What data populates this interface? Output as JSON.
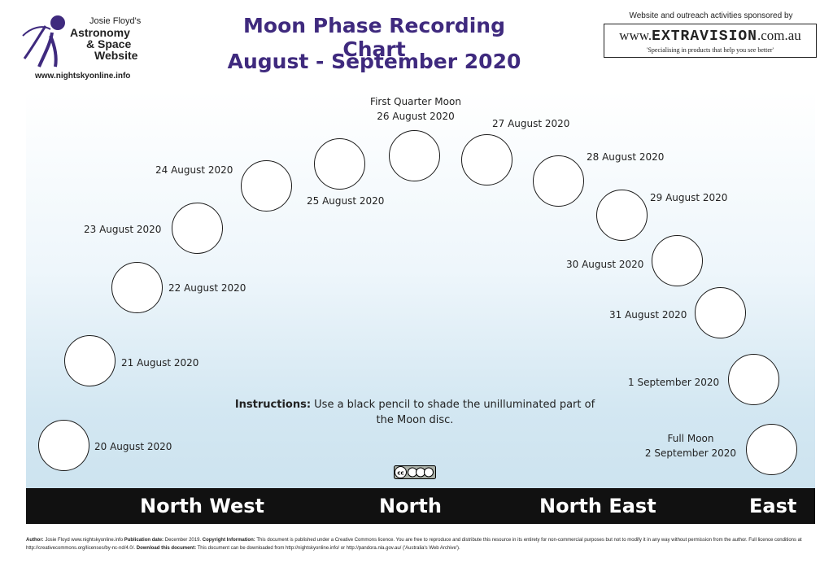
{
  "logo": {
    "line1": "Josie Floyd's",
    "line2": "Astronomy",
    "line3": "& Space",
    "line4": "Website",
    "url": "www.nightskyonline.info"
  },
  "title": {
    "line1": "Moon Phase Recording Chart",
    "line2": "August - September 2020"
  },
  "sponsor": {
    "label": "Website and outreach activities sponsored by",
    "url_prefix": "www.",
    "brand": "EXTRAVISION",
    "url_suffix": ".com.au",
    "tagline": "'Specialising in products that help you see better'"
  },
  "moons": [
    {
      "label": "20 August 2020"
    },
    {
      "label": "21 August 2020"
    },
    {
      "label": "22 August 2020"
    },
    {
      "label": "23 August 2020"
    },
    {
      "label": "24 August 2020"
    },
    {
      "label": "25 August 2020"
    },
    {
      "label": "First Quarter Moon",
      "label2": "26 August 2020"
    },
    {
      "label": "27 August 2020"
    },
    {
      "label": "28 August 2020"
    },
    {
      "label": "29 August 2020"
    },
    {
      "label": "30 August 2020"
    },
    {
      "label": "31 August 2020"
    },
    {
      "label": "1 September 2020"
    },
    {
      "label": "Full Moon",
      "label2": "2 September 2020"
    }
  ],
  "instructions": {
    "bold": "Instructions:",
    "text": " Use a black pencil to shade the unilluminated part of the Moon disc."
  },
  "directions": {
    "north_west": "North West",
    "north": "North",
    "north_east": "North East",
    "east": "East"
  },
  "footer": {
    "author_label": "Author:",
    "author": " Josie Floyd www.nightskyonline.info ",
    "pub_label": "Publication date:",
    "pub": " December 2019. ",
    "copy_label": "Copyright Information:",
    "copy": " This document is published under a Creative Commons licence. You are free to reproduce and distribute this resource in its entirety for non-commercial purposes but not to modify it in any way without permission from the author. Full licence conditions at http://creativecommons.org/licenses/by-nc-nd/4.0/. ",
    "download_label": "Download this document:",
    "download": " This document can be downloaded from http://nightskyonline.info/ or http://pandora.nla.gov.au/ ('Australia's Web Archive')."
  },
  "colors": {
    "title": "#3f2a7e",
    "logo_figure": "#3f2a7e",
    "ground": "#111111"
  }
}
